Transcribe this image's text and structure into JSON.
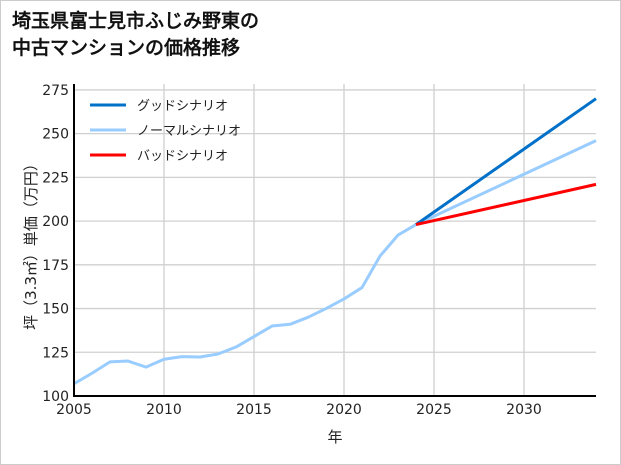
{
  "chart_data": {
    "type": "line",
    "title_lines": [
      "埼玉県富士見市ふじみ野東の",
      "中古マンションの価格推移"
    ],
    "xlabel": "年",
    "ylabel": "坪（3.3㎡）単価（万円）",
    "xlim": [
      2005,
      2034
    ],
    "ylim": [
      100,
      278
    ],
    "xticks": [
      2005,
      2010,
      2015,
      2020,
      2025,
      2030
    ],
    "yticks": [
      100,
      125,
      150,
      175,
      200,
      225,
      250,
      275
    ],
    "grid": true,
    "legend_position": "top-left",
    "series": [
      {
        "name": "グッドシナリオ",
        "color": "#0070c8",
        "x": [
          2024,
          2034
        ],
        "y": [
          198,
          270
        ]
      },
      {
        "name": "ノーマルシナリオ",
        "color": "#99ccff",
        "x": [
          2005,
          2006,
          2007,
          2008,
          2009,
          2010,
          2011,
          2012,
          2013,
          2014,
          2015,
          2016,
          2017,
          2018,
          2019,
          2020,
          2021,
          2022,
          2023,
          2024,
          2034
        ],
        "y": [
          107,
          113,
          119.5,
          120,
          116.5,
          121,
          122.5,
          122.3,
          124,
          128,
          134,
          140,
          141,
          145,
          150,
          155.5,
          162,
          180,
          192,
          198,
          246
        ]
      },
      {
        "name": "バッドシナリオ",
        "color": "#ff0000",
        "x": [
          2024,
          2034
        ],
        "y": [
          198,
          221
        ]
      }
    ]
  }
}
